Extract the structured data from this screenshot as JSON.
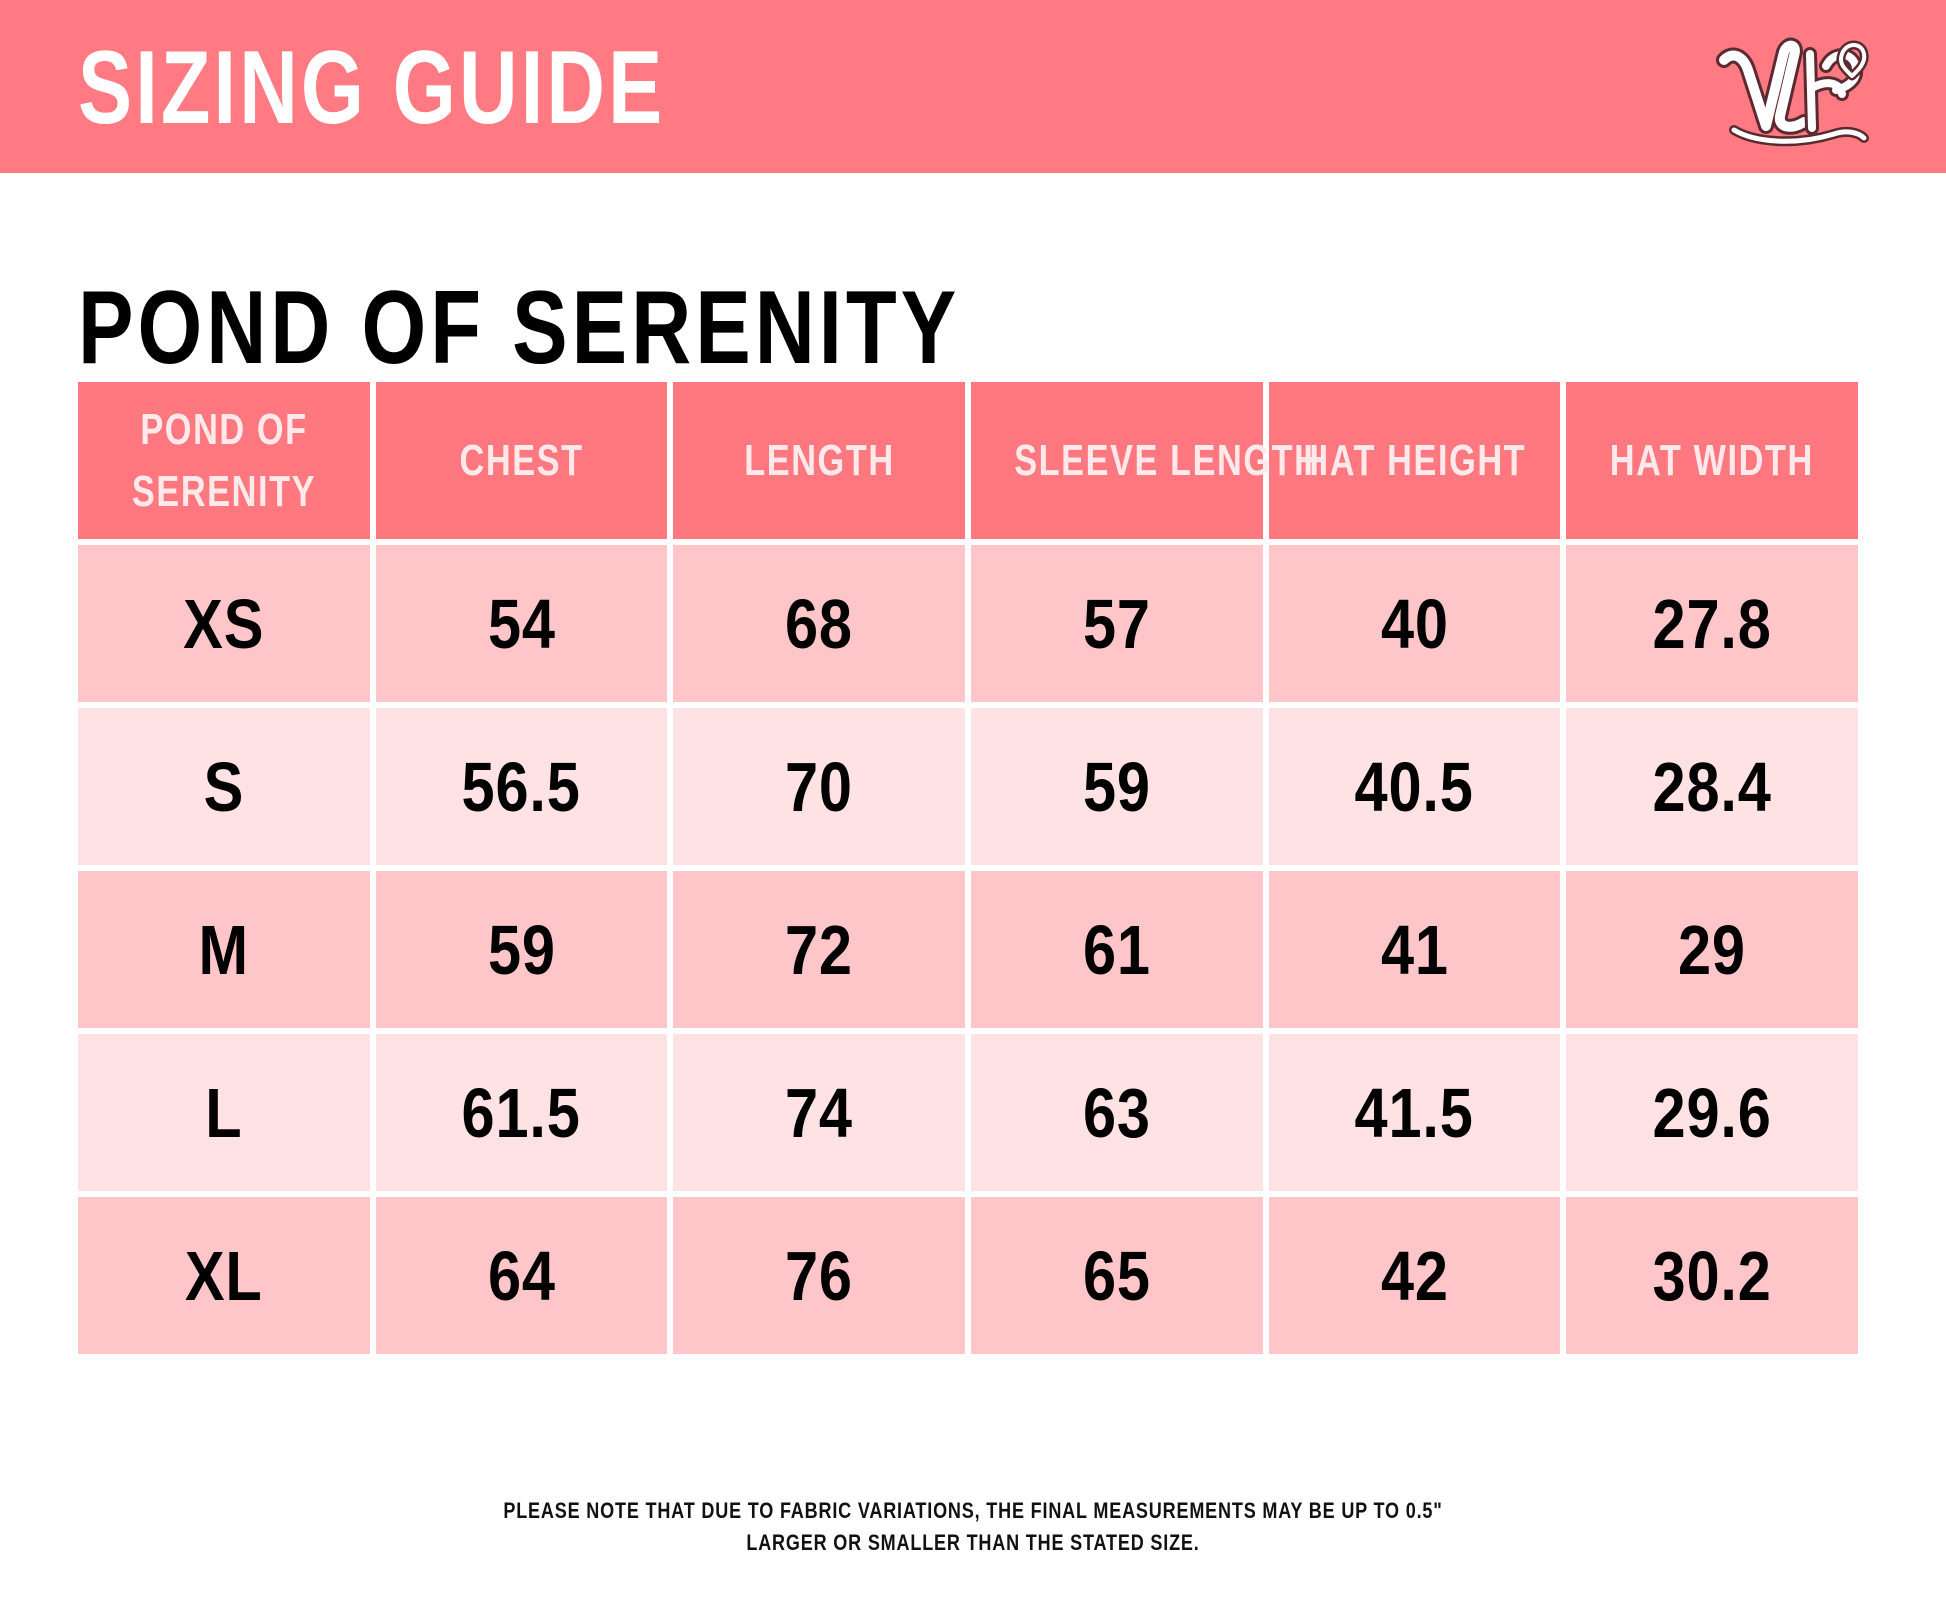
{
  "colors": {
    "banner": "#ff7a82",
    "header_cell": "#ff7880",
    "row_dark": "#ffc6ca",
    "row_light": "#ffe2e4",
    "text_dark": "#000000",
    "text_light": "#ffffff"
  },
  "banner": {
    "title": "SIZING GUIDE",
    "logo_icon": "brand-logo-icon"
  },
  "product": {
    "title": "POND OF SERENITY"
  },
  "table": {
    "headers": [
      "POND OF SERENITY",
      "CHEST",
      "LENGTH",
      "SLEEVE LENGTH",
      "HAT HEIGHT",
      "HAT WIDTH"
    ],
    "rows": [
      [
        "XS",
        "54",
        "68",
        "57",
        "40",
        "27.8"
      ],
      [
        "S",
        "56.5",
        "70",
        "59",
        "40.5",
        "28.4"
      ],
      [
        "M",
        "59",
        "72",
        "61",
        "41",
        "29"
      ],
      [
        "L",
        "61.5",
        "74",
        "63",
        "41.5",
        "29.6"
      ],
      [
        "XL",
        "64",
        "76",
        "65",
        "42",
        "30.2"
      ]
    ]
  },
  "note": {
    "line1": "PLEASE NOTE THAT DUE TO FABRIC VARIATIONS, THE FINAL MEASUREMENTS MAY BE UP TO 0.5\"",
    "line2": "LARGER OR SMALLER THAN THE STATED SIZE."
  }
}
